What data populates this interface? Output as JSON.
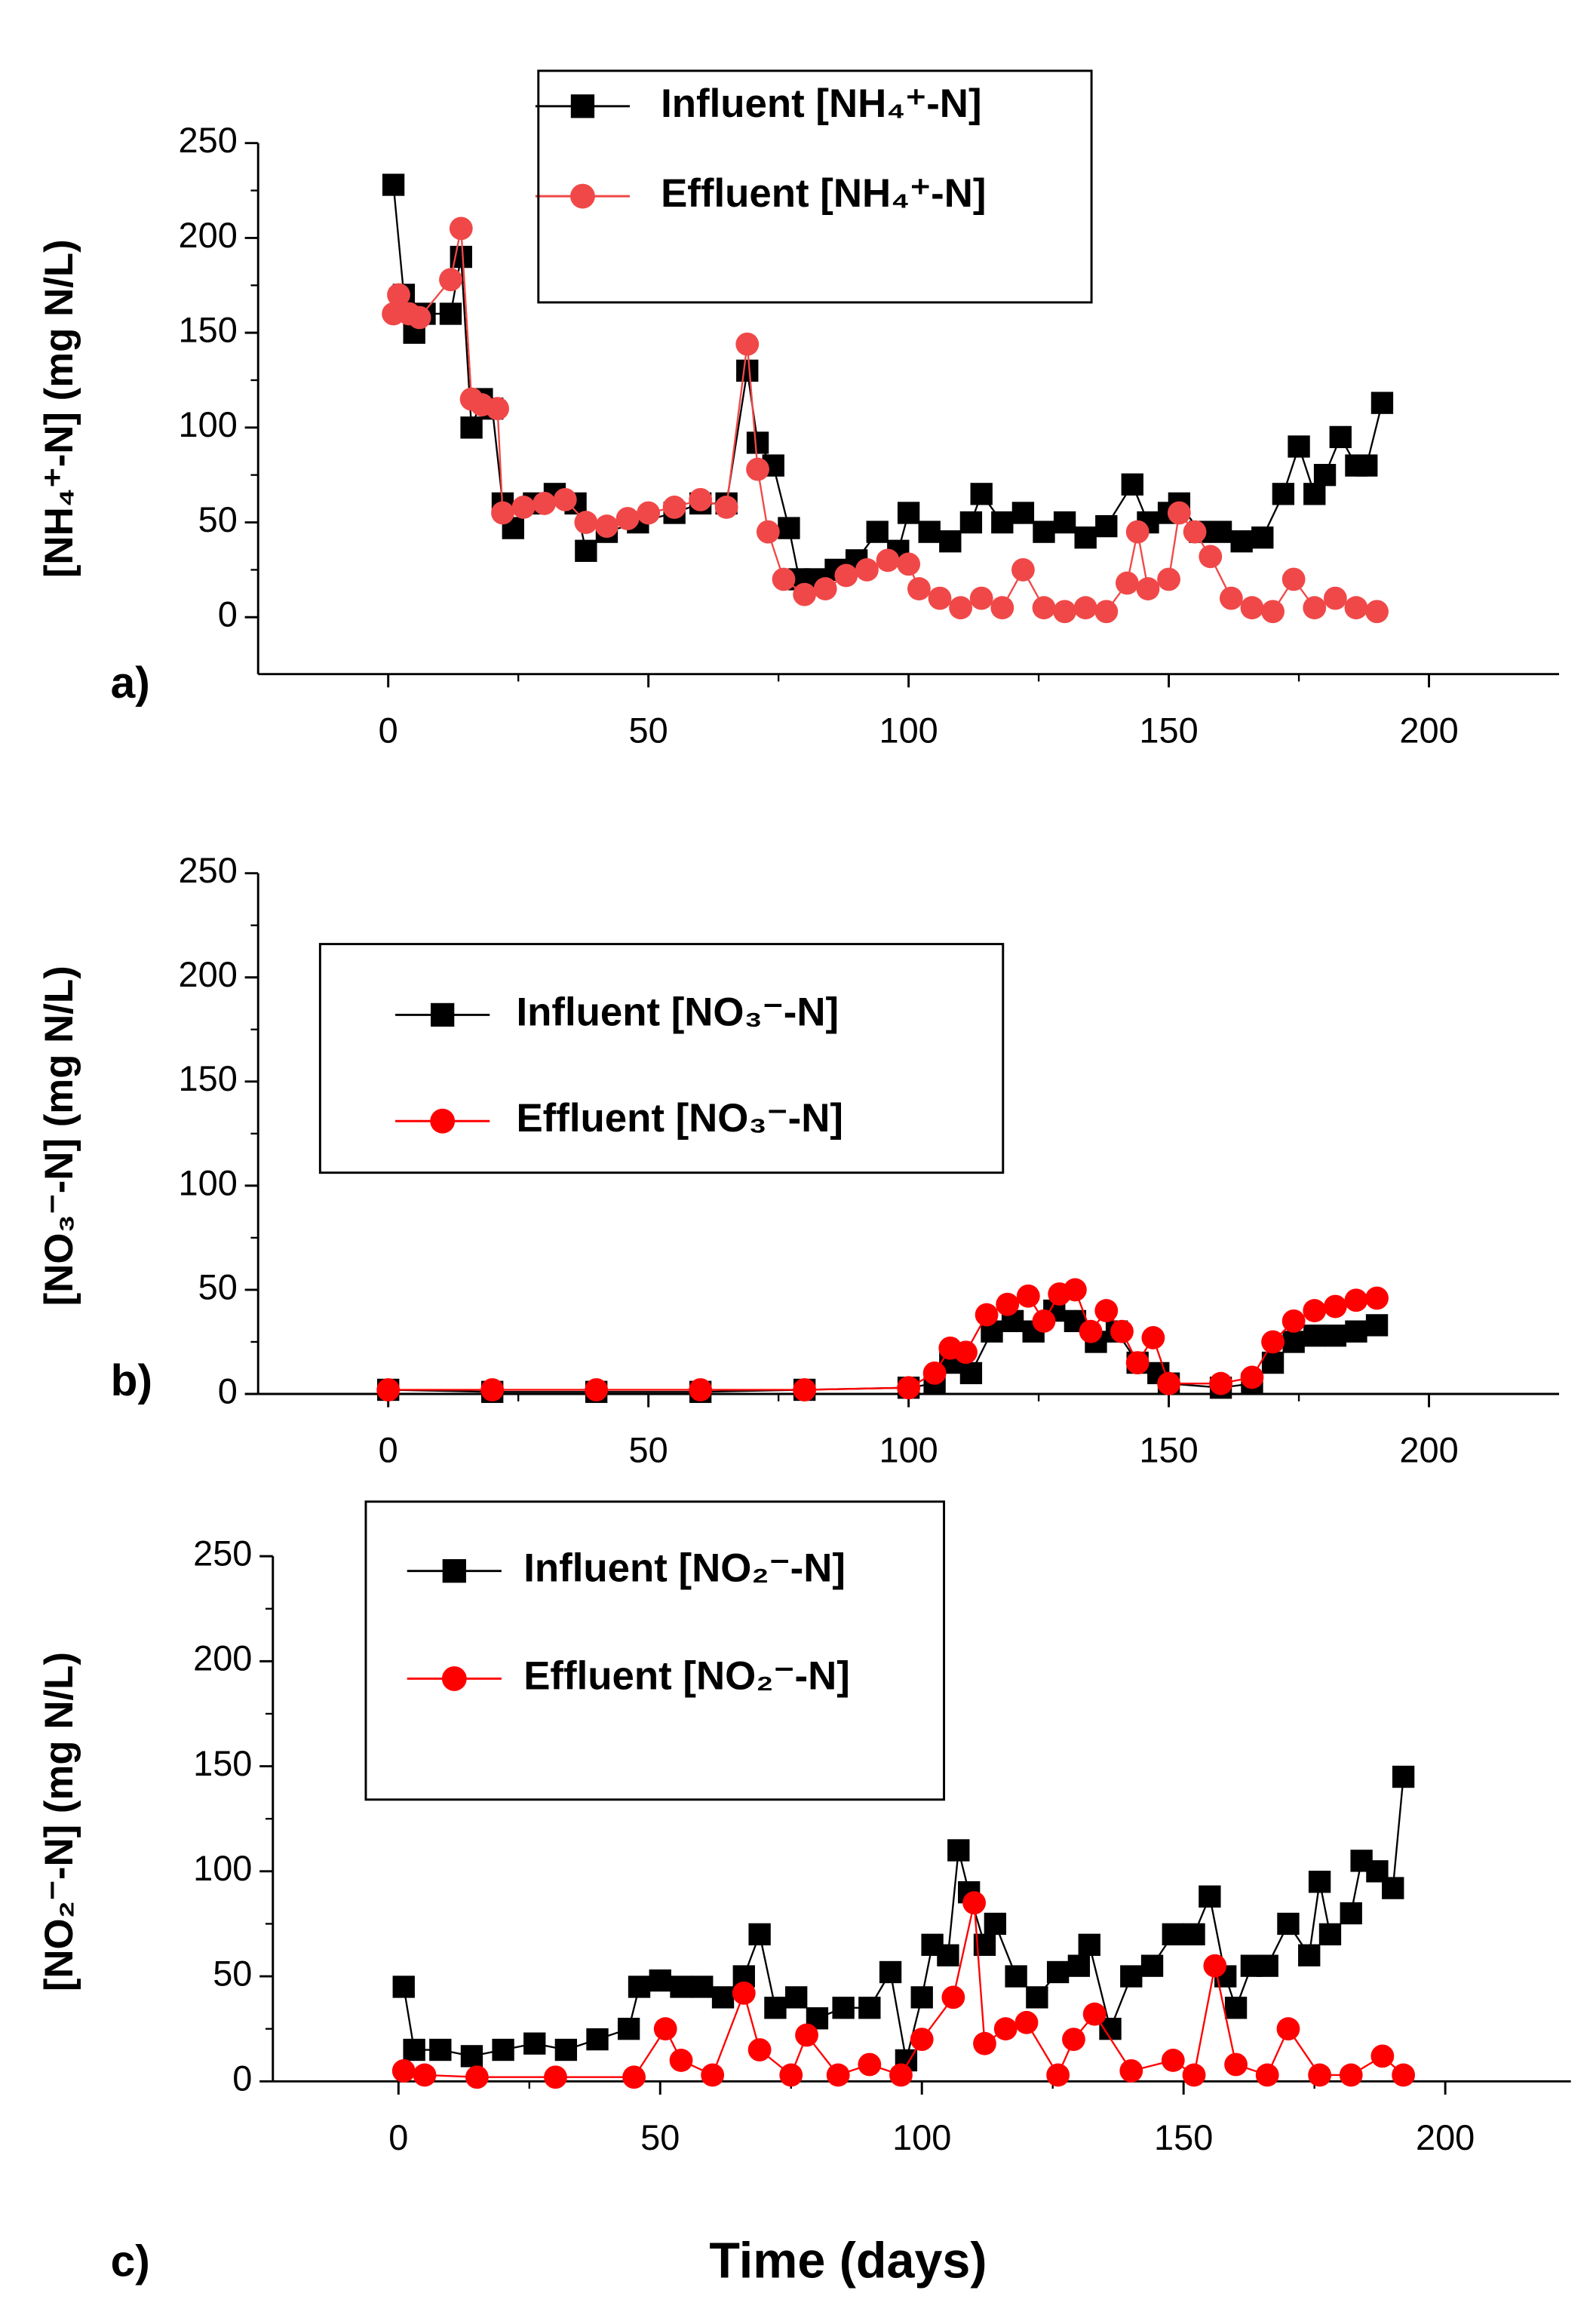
{
  "chart_data": [
    {
      "type": "line",
      "panel_label": "a)",
      "ylabel": "[NH₄⁺-N]  (mg N/L)",
      "xlim": [
        -25,
        225
      ],
      "xticks": [
        0,
        50,
        100,
        150,
        200
      ],
      "ylim": [
        -30,
        250
      ],
      "yticks": [
        0,
        50,
        100,
        150,
        200,
        250
      ],
      "series": [
        {
          "name": "Influent [NH₄⁺-N]",
          "color": "#000000",
          "marker": "square",
          "x": [
            1,
            3,
            5,
            7,
            12,
            14,
            16,
            18,
            20,
            22,
            24,
            28,
            32,
            36,
            38,
            42,
            48,
            55,
            60,
            65,
            69,
            71,
            74,
            77,
            79,
            82,
            86,
            90,
            94,
            98,
            100,
            104,
            108,
            112,
            114,
            118,
            122,
            126,
            130,
            134,
            138,
            143,
            146,
            150,
            152,
            156,
            160,
            164,
            168,
            172,
            175,
            178,
            180,
            183,
            186,
            188,
            191
          ],
          "values": [
            228,
            170,
            150,
            160,
            160,
            190,
            100,
            115,
            110,
            60,
            47,
            60,
            65,
            60,
            35,
            45,
            50,
            55,
            60,
            60,
            130,
            92,
            80,
            47,
            20,
            20,
            25,
            30,
            45,
            35,
            55,
            45,
            40,
            50,
            65,
            50,
            55,
            45,
            50,
            42,
            48,
            70,
            50,
            55,
            60,
            45,
            45,
            40,
            42,
            65,
            90,
            65,
            75,
            95,
            80,
            80,
            113
          ]
        },
        {
          "name": "Effluent [NH₄⁺-N]",
          "color": "#f04848",
          "marker": "circle",
          "x": [
            1,
            2,
            4,
            6,
            12,
            14,
            16,
            18,
            21,
            22,
            26,
            30,
            34,
            38,
            42,
            46,
            50,
            55,
            60,
            65,
            69,
            71,
            73,
            76,
            80,
            84,
            88,
            92,
            96,
            100,
            102,
            106,
            110,
            114,
            118,
            122,
            126,
            130,
            134,
            138,
            142,
            144,
            146,
            150,
            152,
            155,
            158,
            162,
            166,
            170,
            174,
            178,
            182,
            186,
            190
          ],
          "values": [
            160,
            170,
            160,
            158,
            178,
            205,
            115,
            112,
            110,
            55,
            58,
            60,
            62,
            50,
            48,
            52,
            55,
            58,
            62,
            58,
            144,
            78,
            45,
            20,
            12,
            15,
            22,
            25,
            30,
            28,
            15,
            10,
            5,
            10,
            5,
            25,
            5,
            3,
            5,
            3,
            18,
            45,
            15,
            20,
            55,
            45,
            32,
            10,
            5,
            3,
            20,
            5,
            10,
            5,
            3
          ]
        }
      ]
    },
    {
      "type": "line",
      "panel_label": "b)",
      "ylabel": "[NO₃⁻-N]  (mg N/L)",
      "xlim": [
        -25,
        225
      ],
      "xticks": [
        0,
        50,
        100,
        150,
        200
      ],
      "ylim": [
        0,
        250
      ],
      "yticks": [
        0,
        50,
        100,
        150,
        200,
        250
      ],
      "series": [
        {
          "name": "Influent [NO₃⁻-N]",
          "color": "#000000",
          "marker": "square",
          "x": [
            0,
            20,
            40,
            60,
            80,
            100,
            105,
            108,
            112,
            116,
            120,
            124,
            128,
            132,
            136,
            140,
            144,
            148,
            150,
            160,
            166,
            170,
            174,
            178,
            182,
            186,
            190
          ],
          "values": [
            2,
            1,
            1,
            1,
            2,
            3,
            5,
            15,
            10,
            30,
            35,
            30,
            40,
            35,
            25,
            30,
            15,
            10,
            5,
            3,
            5,
            15,
            25,
            28,
            28,
            30,
            33
          ]
        },
        {
          "name": "Effluent [NO₃⁻-N]",
          "color": "#ff0000",
          "marker": "circle",
          "x": [
            0,
            20,
            40,
            60,
            80,
            100,
            105,
            108,
            111,
            115,
            119,
            123,
            126,
            129,
            132,
            135,
            138,
            141,
            144,
            147,
            150,
            160,
            166,
            170,
            174,
            178,
            182,
            186,
            190
          ],
          "values": [
            2,
            2,
            2,
            2,
            2,
            3,
            10,
            22,
            20,
            38,
            43,
            47,
            35,
            48,
            50,
            30,
            40,
            30,
            15,
            27,
            5,
            5,
            8,
            25,
            35,
            40,
            42,
            45,
            46
          ]
        }
      ]
    },
    {
      "type": "line",
      "panel_label": "c)",
      "ylabel": "[NO₂⁻-N]  (mg N/L)",
      "xlabel": "Time (days)",
      "xlim": [
        -24,
        224
      ],
      "xticks": [
        0,
        50,
        100,
        150,
        200
      ],
      "ylim": [
        0,
        250
      ],
      "yticks": [
        0,
        50,
        100,
        150,
        200,
        250
      ],
      "series": [
        {
          "name": "Influent [NO₂⁻-N]",
          "color": "#000000",
          "marker": "square",
          "x": [
            1,
            3,
            8,
            14,
            20,
            26,
            32,
            38,
            44,
            46,
            50,
            54,
            58,
            62,
            66,
            69,
            72,
            76,
            80,
            85,
            90,
            94,
            97,
            100,
            102,
            105,
            107,
            109,
            112,
            114,
            118,
            122,
            126,
            130,
            132,
            136,
            140,
            144,
            148,
            152,
            155,
            158,
            160,
            163,
            166,
            170,
            174,
            176,
            178,
            182,
            184,
            187,
            190,
            192
          ],
          "values": [
            45,
            15,
            15,
            12,
            15,
            18,
            15,
            20,
            25,
            45,
            48,
            45,
            45,
            40,
            50,
            70,
            35,
            40,
            30,
            35,
            35,
            52,
            10,
            40,
            65,
            60,
            110,
            90,
            65,
            75,
            50,
            40,
            52,
            55,
            65,
            25,
            50,
            55,
            70,
            70,
            88,
            50,
            35,
            55,
            55,
            75,
            60,
            95,
            70,
            80,
            105,
            100,
            92,
            145
          ]
        },
        {
          "name": "Effluent [NO₂⁻-N]",
          "color": "#ff0000",
          "marker": "circle",
          "x": [
            1,
            5,
            15,
            30,
            45,
            51,
            54,
            60,
            66,
            69,
            75,
            78,
            84,
            90,
            96,
            100,
            106,
            110,
            112,
            116,
            120,
            126,
            129,
            133,
            140,
            148,
            152,
            156,
            160,
            166,
            170,
            176,
            182,
            188,
            192
          ],
          "values": [
            5,
            3,
            2,
            2,
            2,
            25,
            10,
            3,
            42,
            15,
            3,
            22,
            3,
            8,
            3,
            20,
            40,
            85,
            18,
            25,
            28,
            3,
            20,
            32,
            5,
            10,
            3,
            55,
            8,
            3,
            25,
            3,
            3,
            12,
            3
          ]
        }
      ]
    }
  ]
}
